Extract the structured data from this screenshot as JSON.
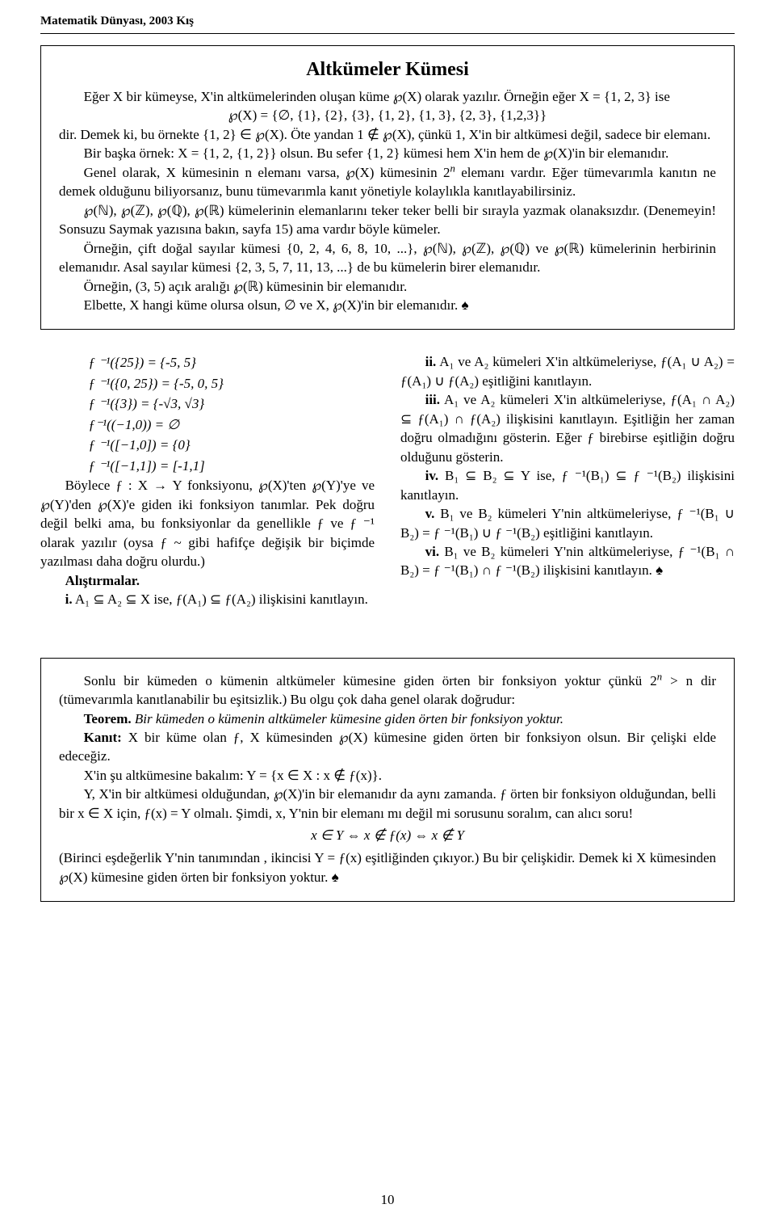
{
  "header": "Matematik Dünyası, 2003 Kış",
  "box1": {
    "title": "Altkümeler Kümesi",
    "p1": "Eğer X bir kümeyse, X'in altkümelerinden oluşan küme ℘(X) olarak yazılır. Örneğin eğer X = {1, 2, 3} ise",
    "eq1": "℘(X) = {∅, {1}, {2}, {3}, {1, 2}, {1, 3}, {2, 3}, {1,2,3}}",
    "p2": "dir. Demek ki, bu örnekte {1, 2} ∈ ℘(X). Öte yandan 1 ∉ ℘(X), çünkü 1, X'in bir altkümesi değil, sadece bir elemanı.",
    "p3": "Bir başka örnek: X = {1, 2, {1, 2}} olsun. Bu sefer {1, 2} kümesi hem X'in hem de ℘(X)'in bir elemanıdır.",
    "p4a": "Genel olarak, X kümesinin n elemanı varsa, ℘(X) kümesinin 2",
    "p4b": " elemanı vardır. Eğer tümevarımla kanıtın ne demek olduğunu biliyorsanız, bunu tümevarımla kanıt yönetiyle kolaylıkla kanıtlayabilirsiniz.",
    "p5": "℘(ℕ), ℘(ℤ), ℘(ℚ), ℘(ℝ) kümelerinin elemanlarını teker teker belli bir sırayla yazmak olanaksızdır. (Denemeyin! Sonsuzu Saymak yazısına bakın, sayfa 15) ama vardır böyle kümeler.",
    "p6": "Örneğin, çift doğal sayılar kümesi {0, 2, 4, 6, 8, 10, ...}, ℘(ℕ), ℘(ℤ), ℘(ℚ) ve ℘(ℝ) kümelerinin herbirinin elemanıdır. Asal sayılar kümesi {2, 3, 5, 7, 11, 13, ...} de bu kümelerin birer elemanıdır.",
    "p7": "Örneğin, (3, 5) açık aralığı ℘(ℝ) kümesinin bir elemanıdır.",
    "p8": "Elbette, X hangi küme olursa olsun, ∅ ve X, ℘(X)'in bir elemanıdır. ♠"
  },
  "left": {
    "eq1": "ƒ ⁻¹({25}) = {-5, 5}",
    "eq2": "ƒ ⁻¹({0, 25}) = {-5, 0, 5}",
    "eq3": "ƒ ⁻¹({3}) = {-√3, √3}",
    "eq4": "ƒ⁻¹((−1,0)) = ∅",
    "eq5": "ƒ ⁻¹([−1,0]) = {0}",
    "eq6": "ƒ ⁻¹([−1,1]) = [-1,1]",
    "p1": "Böylece ƒ : X → Y fonksiyonu, ℘(X)'ten ℘(Y)'ye ve ℘(Y)'den ℘(X)'e giden iki fonksiyon tanımlar. Pek doğru değil belki ama, bu fonksiyonlar da genellikle ƒ ve ƒ ⁻¹ olarak yazılır (oysa ƒ ~ gibi hafifçe değişik bir biçimde yazılması daha doğru olurdu.)",
    "exhead": "Alıştırmalar.",
    "ex_i_a": "i.",
    "ex_i_b": " A₁ ⊆ A₂ ⊆ X ise, ƒ(A₁) ⊆ ƒ(A₂) ilişkisini kanıtlayın."
  },
  "right": {
    "ii_a": "ii.",
    "ii_b": " A₁ ve A₂ kümeleri X'in altkümeleriyse, ƒ(A₁ ∪ A₂) = ƒ(A₁) ∪ ƒ(A₂) eşitliğini kanıtlayın.",
    "iii_a": "iii.",
    "iii_b": " A₁ ve A₂ kümeleri X'in altkümeleriyse, ƒ(A₁ ∩ A₂) ⊆ ƒ(A₁) ∩ ƒ(A₂) ilişkisini kanıtlayın. Eşitliğin her zaman doğru olmadığını gösterin. Eğer ƒ birebirse eşitliğin doğru olduğunu gösterin.",
    "iv_a": "iv.",
    "iv_b": " B₁ ⊆ B₂ ⊆ Y ise, ƒ ⁻¹(B₁) ⊆ ƒ ⁻¹(B₂) ilişkisini kanıtlayın.",
    "v_a": "v.",
    "v_b": " B₁ ve B₂ kümeleri Y'nin altkümeleriyse, ƒ ⁻¹(B₁ ∪ B₂) = ƒ ⁻¹(B₁) ∪ ƒ ⁻¹(B₂) eşitliğini kanıtlayın.",
    "vi_a": "vi.",
    "vi_b": " B₁ ve B₂ kümeleri Y'nin altkümeleriyse, ƒ ⁻¹(B₁ ∩ B₂) = ƒ ⁻¹(B₁) ∩ ƒ ⁻¹(B₂) ilişkisini kanıtlayın. ♠"
  },
  "box2": {
    "p1a": "Sonlu bir kümeden o kümenin altkümeler kümesine giden örten bir fonksiyon yoktur çünkü 2",
    "p1b": " > n dir (tümevarımla kanıtlanabilir bu eşitsizlik.) Bu olgu çok daha genel olarak doğrudur:",
    "teorem_a": "Teorem.",
    "teorem_b": " Bir kümeden o kümenin altkümeler kümesine giden örten bir fonksiyon yoktur.",
    "kanit_a": "Kanıt:",
    "kanit_b": " X bir küme olan ƒ, X kümesinden ℘(X) kümesine giden örten bir fonksiyon olsun. Bir çelişki elde edeceğiz.",
    "p2": "X'in şu altkümesine bakalım: Y = {x ∈ X : x ∉ ƒ(x)}.",
    "p3": "Y, X'in bir altkümesi olduğundan, ℘(X)'in bir elemanıdır da aynı zamanda. ƒ örten bir fonksiyon olduğundan, belli bir x ∈ X için, ƒ(x) = Y olmalı. Şimdi, x, Y'nin bir elemanı mı değil mi sorusunu soralım, can alıcı soru!",
    "eq": "x ∈ Y ⇔ x ∉ ƒ(x) ⇔ x ∉ Y",
    "p4": "(Birinci eşdeğerlik Y'nin tanımından , ikincisi Y = ƒ(x) eşitliğinden çıkıyor.) Bu bir çelişkidir. Demek ki X kümesinden ℘(X) kümesine giden örten bir fonksiyon yoktur. ♠"
  },
  "pagenum": "10"
}
